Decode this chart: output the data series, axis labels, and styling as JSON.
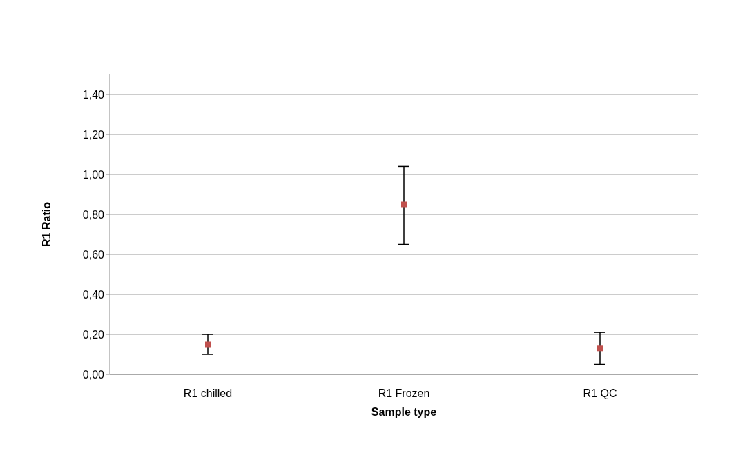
{
  "chart_data": {
    "type": "scatter",
    "xlabel": "Sample type",
    "ylabel": "R1 Ratio",
    "categories": [
      "R1 chilled",
      "R1 Frozen",
      "R1 QC"
    ],
    "values": [
      0.15,
      0.85,
      0.13
    ],
    "errors": [
      [
        0.1,
        0.2
      ],
      [
        0.65,
        1.04
      ],
      [
        0.05,
        0.21
      ]
    ],
    "color": "#c0504d",
    "marker": "square",
    "grid": "y",
    "legend": false,
    "ylim": [
      0,
      1.5
    ],
    "yticks": [
      {
        "value": 0,
        "label": "0,00"
      },
      {
        "value": 0.2,
        "label": "0,20"
      },
      {
        "value": 0.4,
        "label": "0,40"
      },
      {
        "value": 0.6,
        "label": "0,60"
      },
      {
        "value": 0.8,
        "label": "0,80"
      },
      {
        "value": 1,
        "label": "1,00"
      },
      {
        "value": 1.2,
        "label": "1,20"
      },
      {
        "value": 1.4,
        "label": "1,40"
      }
    ]
  }
}
